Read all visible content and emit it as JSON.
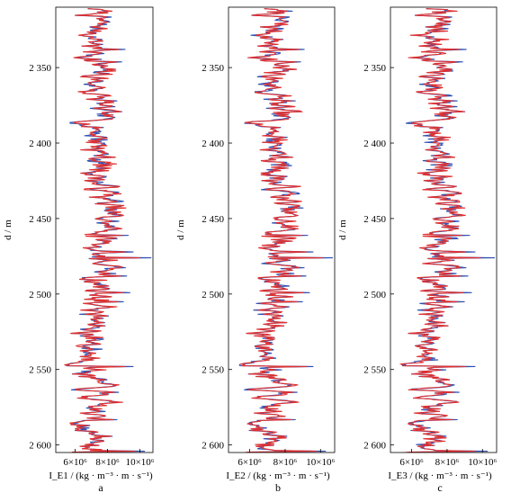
{
  "chart_data": [
    {
      "type": "line",
      "panel_label": "a",
      "ylabel": "d / m",
      "xlabel": "I_E1 / (kg · m⁻³ · m · s⁻¹)",
      "x_ticks": [
        "6×10⁶",
        "8×10⁶",
        "10×10⁶"
      ],
      "y_ticks": [
        "2 350",
        "2 400",
        "2 450",
        "2 500",
        "2 550",
        "2 600"
      ],
      "ylim": [
        2605,
        2310
      ],
      "xlim": [
        4.8,
        10.8
      ],
      "series_colors": [
        "#3050b0",
        "#e03030"
      ]
    },
    {
      "type": "line",
      "panel_label": "b",
      "ylabel": "d / m",
      "xlabel": "I_E2 / (kg · m⁻³ · m · s⁻¹)",
      "x_ticks": [
        "6×10⁶",
        "8×10⁶",
        "10×10⁶"
      ],
      "y_ticks": [
        "2 350",
        "2 400",
        "2 450",
        "2 500",
        "2 550",
        "2 600"
      ],
      "ylim": [
        2605,
        2310
      ],
      "xlim": [
        4.8,
        10.8
      ],
      "series_colors": [
        "#3050b0",
        "#e03030"
      ]
    },
    {
      "type": "line",
      "panel_label": "c",
      "ylabel": "d / m",
      "xlabel": "I_E3 / (kg · m⁻³ · m · s⁻¹)",
      "x_ticks": [
        "6×10⁶",
        "8×10⁶",
        "10×10⁶"
      ],
      "y_ticks": [
        "2 350",
        "2 400",
        "2 450",
        "2 500",
        "2 550",
        "2 600"
      ],
      "ylim": [
        2605,
        2310
      ],
      "xlim": [
        4.8,
        10.8
      ],
      "series_colors": [
        "#3050b0",
        "#e03030"
      ]
    }
  ]
}
